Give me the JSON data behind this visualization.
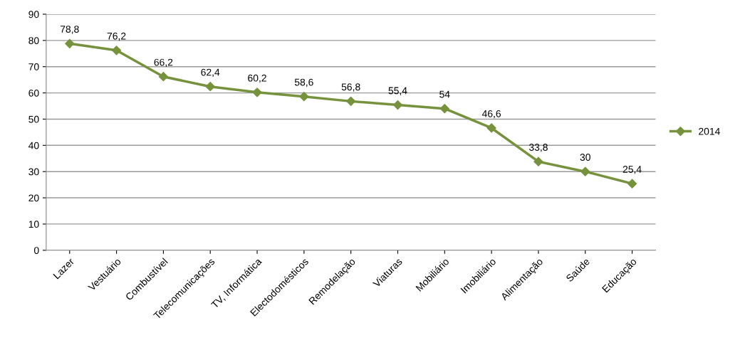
{
  "chart_data": {
    "type": "line",
    "categories": [
      "Lazer",
      "Vestuário",
      "Combustível",
      "Telecomunicações",
      "TV, Informática",
      "Electodomésticos",
      "Remodelação",
      "Viaturas",
      "Mobiliário",
      "Imobiliário",
      "Alimentação",
      "Saúde",
      "Educação"
    ],
    "series": [
      {
        "name": "2014",
        "color": "#76923c",
        "values": [
          78.8,
          76.2,
          66.2,
          62.4,
          60.2,
          58.6,
          56.8,
          55.4,
          54,
          46.6,
          33.8,
          30,
          25.4
        ],
        "value_labels": [
          "78,8",
          "76,2",
          "66,2",
          "62,4",
          "60,2",
          "58,6",
          "56,8",
          "55,4",
          "54",
          "46,6",
          "33,8",
          "30",
          "25,4"
        ]
      }
    ],
    "ylim": [
      0,
      90
    ],
    "yticks": [
      0,
      10,
      20,
      30,
      40,
      50,
      60,
      70,
      80,
      90
    ],
    "grid": "y",
    "legend": "right",
    "marker": "diamond",
    "line_style": "solid"
  }
}
